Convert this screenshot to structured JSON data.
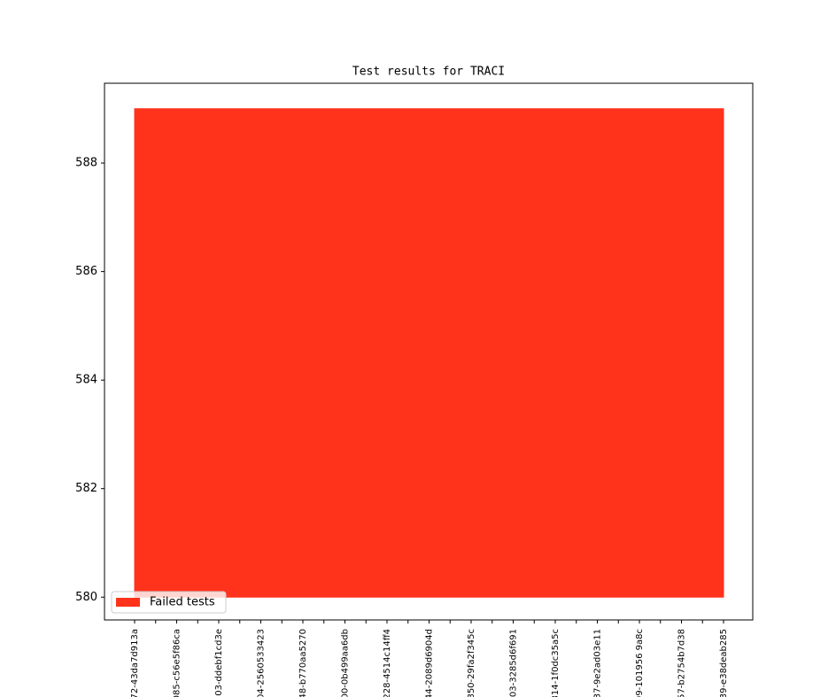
{
  "chart_data": {
    "type": "area",
    "title": "Test results for TRACI",
    "categories": [
      "72-43da7d913a",
      null,
      "085-c56e5f86ca",
      null,
      "03-ddebf1cd3e",
      null,
      "04-2560533423",
      null,
      "48-b770aa5270",
      null,
      "00-0b499aa6db",
      null,
      "228-4514c14ff4",
      null,
      "44-2089d6904d",
      null,
      "850-29fa2f345c",
      null,
      "03-3285d6f691",
      null,
      "814-1f0dc35a5c",
      null,
      "37-9e2ad03e11",
      null,
      "99-101956 9a8c",
      null,
      "57-b2754b7d38",
      null,
      "39-e38deab285"
    ],
    "series": [
      {
        "name": "Failed tests",
        "color": "#ff331c",
        "values": [
          589,
          589,
          589,
          589,
          589,
          589,
          589,
          589,
          589,
          589,
          589,
          589,
          589,
          589,
          589,
          589,
          589,
          589,
          589,
          589,
          589,
          589,
          589,
          589,
          589,
          589,
          589,
          589,
          589
        ]
      }
    ],
    "baseline": 580,
    "ylim": [
      579.58,
      589.47
    ],
    "yticks": [
      580,
      582,
      584,
      586,
      588
    ],
    "legend": "lower left",
    "grid": false
  }
}
